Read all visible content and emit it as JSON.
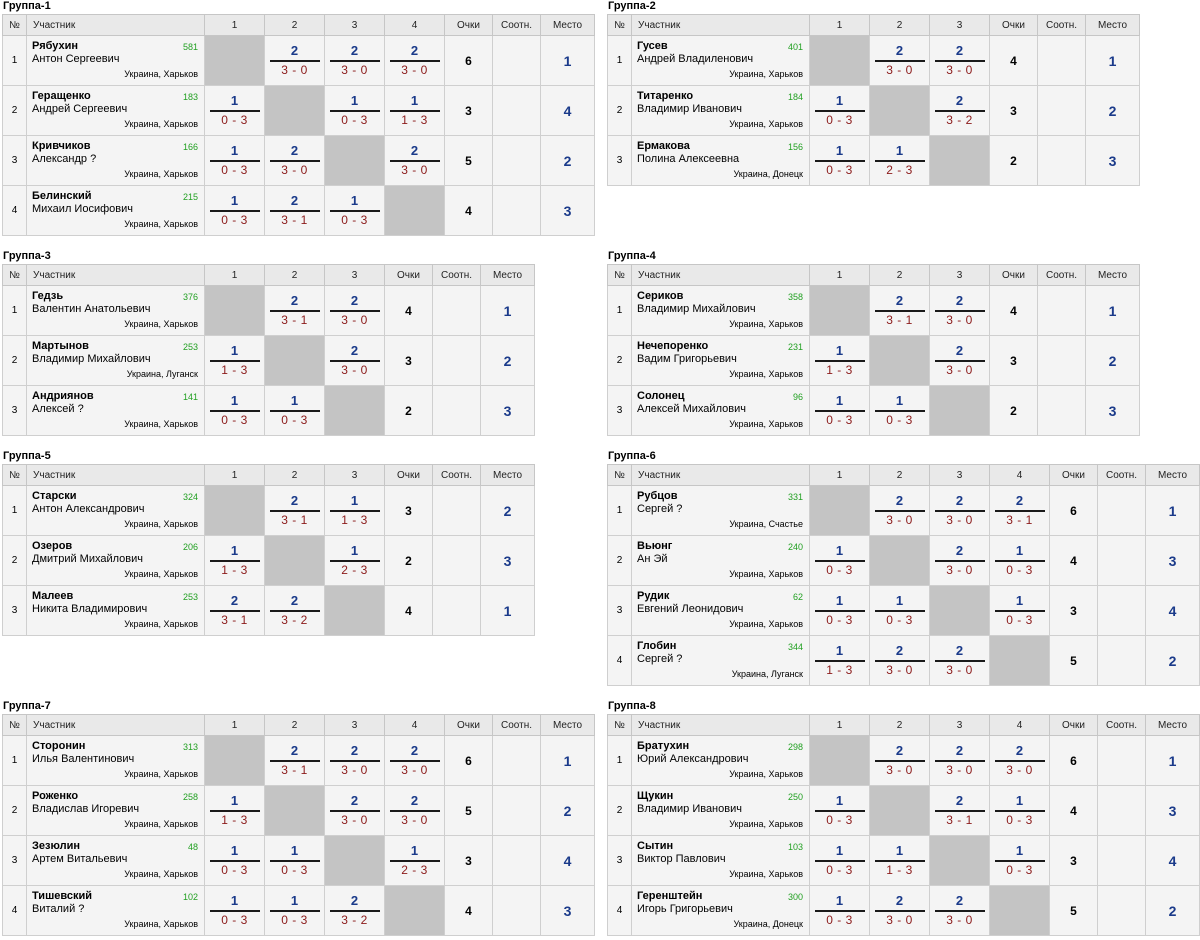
{
  "headers": {
    "no": "№",
    "participant": "Участник",
    "points": "Очки",
    "ratio": "Соотн.",
    "place": "Место"
  },
  "groups": [
    {
      "title": "Группа-1",
      "players": [
        {
          "num": "1",
          "name": "Рябухин",
          "first": "Антон Сергеевич",
          "rating": "581",
          "loc": "Украина, Харьков",
          "points": "6",
          "place": "1",
          "results": [
            null,
            {
              "t": "2",
              "b": "3 - 0"
            },
            {
              "t": "2",
              "b": "3 - 0"
            },
            {
              "t": "2",
              "b": "3 - 0"
            }
          ]
        },
        {
          "num": "2",
          "name": "Геращенко",
          "first": "Андрей Сергеевич",
          "rating": "183",
          "loc": "Украина, Харьков",
          "points": "3",
          "place": "4",
          "results": [
            {
              "t": "1",
              "b": "0 - 3"
            },
            null,
            {
              "t": "1",
              "b": "0 - 3"
            },
            {
              "t": "1",
              "b": "1 - 3"
            }
          ]
        },
        {
          "num": "3",
          "name": "Кривчиков",
          "first": "Александр ?",
          "rating": "166",
          "loc": "Украина, Харьков",
          "points": "5",
          "place": "2",
          "results": [
            {
              "t": "1",
              "b": "0 - 3"
            },
            {
              "t": "2",
              "b": "3 - 0"
            },
            null,
            {
              "t": "2",
              "b": "3 - 0"
            }
          ]
        },
        {
          "num": "4",
          "name": "Белинский",
          "first": "Михаил Иосифович",
          "rating": "215",
          "loc": "Украина, Харьков",
          "points": "4",
          "place": "3",
          "results": [
            {
              "t": "1",
              "b": "0 - 3"
            },
            {
              "t": "2",
              "b": "3 - 1"
            },
            {
              "t": "1",
              "b": "0 - 3"
            },
            null
          ]
        }
      ]
    },
    {
      "title": "Группа-2",
      "players": [
        {
          "num": "1",
          "name": "Гусев",
          "first": "Андрей Владиленович",
          "rating": "401",
          "loc": "Украина, Харьков",
          "points": "4",
          "place": "1",
          "results": [
            null,
            {
              "t": "2",
              "b": "3 - 0"
            },
            {
              "t": "2",
              "b": "3 - 0"
            }
          ]
        },
        {
          "num": "2",
          "name": "Титаренко",
          "first": "Владимир Иванович",
          "rating": "184",
          "loc": "Украина, Харьков",
          "points": "3",
          "place": "2",
          "results": [
            {
              "t": "1",
              "b": "0 - 3"
            },
            null,
            {
              "t": "2",
              "b": "3 - 2"
            }
          ]
        },
        {
          "num": "3",
          "name": "Ермакова",
          "first": "Полина Алексеевна",
          "rating": "156",
          "loc": "Украина, Донецк",
          "points": "2",
          "place": "3",
          "results": [
            {
              "t": "1",
              "b": "0 - 3"
            },
            {
              "t": "1",
              "b": "2 - 3"
            },
            null
          ]
        }
      ]
    },
    {
      "title": "Группа-3",
      "players": [
        {
          "num": "1",
          "name": "Гедзь",
          "first": "Валентин Анатольевич",
          "rating": "376",
          "loc": "Украина, Харьков",
          "points": "4",
          "place": "1",
          "results": [
            null,
            {
              "t": "2",
              "b": "3 - 1"
            },
            {
              "t": "2",
              "b": "3 - 0"
            }
          ]
        },
        {
          "num": "2",
          "name": "Мартынов",
          "first": "Владимир Михайлович",
          "rating": "253",
          "loc": "Украина, Луганск",
          "points": "3",
          "place": "2",
          "results": [
            {
              "t": "1",
              "b": "1 - 3"
            },
            null,
            {
              "t": "2",
              "b": "3 - 0"
            }
          ]
        },
        {
          "num": "3",
          "name": "Андриянов",
          "first": "Алексей ?",
          "rating": "141",
          "loc": "Украина, Харьков",
          "points": "2",
          "place": "3",
          "results": [
            {
              "t": "1",
              "b": "0 - 3"
            },
            {
              "t": "1",
              "b": "0 - 3"
            },
            null
          ]
        }
      ]
    },
    {
      "title": "Группа-4",
      "players": [
        {
          "num": "1",
          "name": "Сериков",
          "first": "Владимир Михайлович",
          "rating": "358",
          "loc": "Украина, Харьков",
          "points": "4",
          "place": "1",
          "results": [
            null,
            {
              "t": "2",
              "b": "3 - 1"
            },
            {
              "t": "2",
              "b": "3 - 0"
            }
          ]
        },
        {
          "num": "2",
          "name": "Нечепоренко",
          "first": "Вадим Григорьевич",
          "rating": "231",
          "loc": "Украина, Харьков",
          "points": "3",
          "place": "2",
          "results": [
            {
              "t": "1",
              "b": "1 - 3"
            },
            null,
            {
              "t": "2",
              "b": "3 - 0"
            }
          ]
        },
        {
          "num": "3",
          "name": "Солонец",
          "first": "Алексей Михайлович",
          "rating": "96",
          "loc": "Украина, Харьков",
          "points": "2",
          "place": "3",
          "results": [
            {
              "t": "1",
              "b": "0 - 3"
            },
            {
              "t": "1",
              "b": "0 - 3"
            },
            null
          ]
        }
      ]
    },
    {
      "title": "Группа-5",
      "players": [
        {
          "num": "1",
          "name": "Старски",
          "first": "Антон Александрович",
          "rating": "324",
          "loc": "Украина, Харьков",
          "points": "3",
          "place": "2",
          "results": [
            null,
            {
              "t": "2",
              "b": "3 - 1"
            },
            {
              "t": "1",
              "b": "1 - 3"
            }
          ]
        },
        {
          "num": "2",
          "name": "Озеров",
          "first": "Дмитрий Михайлович",
          "rating": "206",
          "loc": "Украина, Харьков",
          "points": "2",
          "place": "3",
          "results": [
            {
              "t": "1",
              "b": "1 - 3"
            },
            null,
            {
              "t": "1",
              "b": "2 - 3"
            }
          ]
        },
        {
          "num": "3",
          "name": "Малеев",
          "first": "Никита Владимирович",
          "rating": "253",
          "loc": "Украина, Харьков",
          "points": "4",
          "place": "1",
          "results": [
            {
              "t": "2",
              "b": "3 - 1"
            },
            {
              "t": "2",
              "b": "3 - 2"
            },
            null
          ]
        }
      ]
    },
    {
      "title": "Группа-6",
      "players": [
        {
          "num": "1",
          "name": "Рубцов",
          "first": "Сергей ?",
          "rating": "331",
          "loc": "Украина, Счастье",
          "points": "6",
          "place": "1",
          "results": [
            null,
            {
              "t": "2",
              "b": "3 - 0"
            },
            {
              "t": "2",
              "b": "3 - 0"
            },
            {
              "t": "2",
              "b": "3 - 1"
            }
          ]
        },
        {
          "num": "2",
          "name": "Вьюнг",
          "first": "Ан Эй",
          "rating": "240",
          "loc": "Украина, Харьков",
          "points": "4",
          "place": "3",
          "results": [
            {
              "t": "1",
              "b": "0 - 3"
            },
            null,
            {
              "t": "2",
              "b": "3 - 0"
            },
            {
              "t": "1",
              "b": "0 - 3"
            }
          ]
        },
        {
          "num": "3",
          "name": "Рудик",
          "first": "Евгений Леонидович",
          "rating": "62",
          "loc": "Украина, Харьков",
          "points": "3",
          "place": "4",
          "results": [
            {
              "t": "1",
              "b": "0 - 3"
            },
            {
              "t": "1",
              "b": "0 - 3"
            },
            null,
            {
              "t": "1",
              "b": "0 - 3"
            }
          ]
        },
        {
          "num": "4",
          "name": "Глобин",
          "first": "Сергей ?",
          "rating": "344",
          "loc": "Украина, Луганск",
          "points": "5",
          "place": "2",
          "results": [
            {
              "t": "1",
              "b": "1 - 3"
            },
            {
              "t": "2",
              "b": "3 - 0"
            },
            {
              "t": "2",
              "b": "3 - 0"
            },
            null
          ]
        }
      ]
    },
    {
      "title": "Группа-7",
      "players": [
        {
          "num": "1",
          "name": "Сторонин",
          "first": "Илья Валентинович",
          "rating": "313",
          "loc": "Украина, Харьков",
          "points": "6",
          "place": "1",
          "results": [
            null,
            {
              "t": "2",
              "b": "3 - 1"
            },
            {
              "t": "2",
              "b": "3 - 0"
            },
            {
              "t": "2",
              "b": "3 - 0"
            }
          ]
        },
        {
          "num": "2",
          "name": "Роженко",
          "first": "Владислав Игоревич",
          "rating": "258",
          "loc": "Украина, Харьков",
          "points": "5",
          "place": "2",
          "results": [
            {
              "t": "1",
              "b": "1 - 3"
            },
            null,
            {
              "t": "2",
              "b": "3 - 0"
            },
            {
              "t": "2",
              "b": "3 - 0"
            }
          ]
        },
        {
          "num": "3",
          "name": "Зезюлин",
          "first": "Артем Витальевич",
          "rating": "48",
          "loc": "Украина, Харьков",
          "points": "3",
          "place": "4",
          "results": [
            {
              "t": "1",
              "b": "0 - 3"
            },
            {
              "t": "1",
              "b": "0 - 3"
            },
            null,
            {
              "t": "1",
              "b": "2 - 3"
            }
          ]
        },
        {
          "num": "4",
          "name": "Тишевский",
          "first": "Виталий ?",
          "rating": "102",
          "loc": "Украина, Харьков",
          "points": "4",
          "place": "3",
          "results": [
            {
              "t": "1",
              "b": "0 - 3"
            },
            {
              "t": "1",
              "b": "0 - 3"
            },
            {
              "t": "2",
              "b": "3 - 2"
            },
            null
          ]
        }
      ]
    },
    {
      "title": "Группа-8",
      "players": [
        {
          "num": "1",
          "name": "Братухин",
          "first": "Юрий Александрович",
          "rating": "298",
          "loc": "Украина, Харьков",
          "points": "6",
          "place": "1",
          "results": [
            null,
            {
              "t": "2",
              "b": "3 - 0"
            },
            {
              "t": "2",
              "b": "3 - 0"
            },
            {
              "t": "2",
              "b": "3 - 0"
            }
          ]
        },
        {
          "num": "2",
          "name": "Щукин",
          "first": "Владимир Иванович",
          "rating": "250",
          "loc": "Украина, Харьков",
          "points": "4",
          "place": "3",
          "results": [
            {
              "t": "1",
              "b": "0 - 3"
            },
            null,
            {
              "t": "2",
              "b": "3 - 1"
            },
            {
              "t": "1",
              "b": "0 - 3"
            }
          ]
        },
        {
          "num": "3",
          "name": "Сытин",
          "first": "Виктор Павлович",
          "rating": "103",
          "loc": "Украина, Харьков",
          "points": "3",
          "place": "4",
          "results": [
            {
              "t": "1",
              "b": "0 - 3"
            },
            {
              "t": "1",
              "b": "1 - 3"
            },
            null,
            {
              "t": "1",
              "b": "0 - 3"
            }
          ]
        },
        {
          "num": "4",
          "name": "Геренштейн",
          "first": "Игорь Григорьевич",
          "rating": "300",
          "loc": "Украина, Донецк",
          "points": "5",
          "place": "2",
          "results": [
            {
              "t": "1",
              "b": "0 - 3"
            },
            {
              "t": "2",
              "b": "3 - 0"
            },
            {
              "t": "2",
              "b": "3 - 0"
            },
            null
          ]
        }
      ]
    }
  ]
}
